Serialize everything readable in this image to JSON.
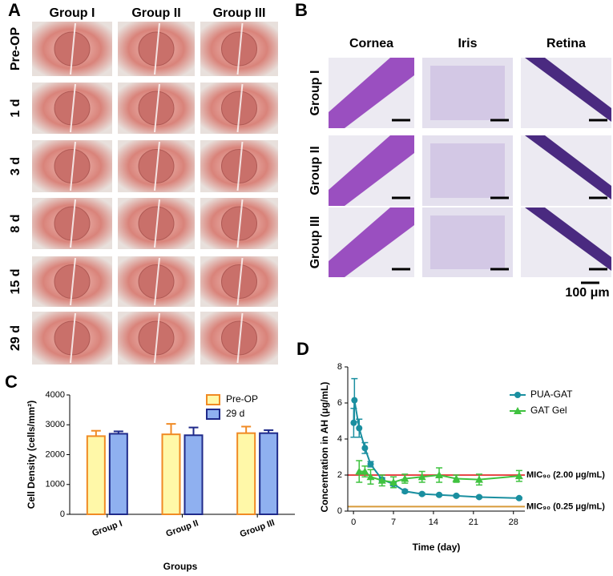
{
  "panel_a": {
    "label": "A",
    "columns": [
      "Group I",
      "Group II",
      "Group III"
    ],
    "rows": [
      "Pre-OP",
      "1 d",
      "3 d",
      "8 d",
      "15 d",
      "29 d"
    ]
  },
  "panel_b": {
    "label": "B",
    "columns": [
      "Cornea",
      "Iris",
      "Retina"
    ],
    "rows": [
      "Group I",
      "Group II",
      "Group III"
    ],
    "scale_bar": "100 μm"
  },
  "chart_data": [
    {
      "type": "bar",
      "label": "C",
      "y_label": "Cell Density (cells/mm²)",
      "x_label": "Groups",
      "categories": [
        "Group I",
        "Group II",
        "Group III"
      ],
      "series": [
        {
          "name": "Pre-OP",
          "color": "#f08a24",
          "fill": "#fff8a8",
          "values": [
            2620,
            2680,
            2720
          ],
          "errors": [
            180,
            350,
            220
          ]
        },
        {
          "name": "29 d",
          "color": "#1f2a8a",
          "fill": "#8fb0f0",
          "values": [
            2700,
            2650,
            2720
          ],
          "errors": [
            80,
            260,
            100
          ]
        }
      ],
      "ylim": [
        0,
        4000
      ],
      "yticks": [
        0,
        1000,
        2000,
        3000,
        4000
      ]
    },
    {
      "type": "line",
      "label": "D",
      "y_label": "Concentration in AH (μg/mL)",
      "x_label": "Time (day)",
      "series": [
        {
          "name": "PUA-GAT",
          "color": "#1a8fa0",
          "marker": "circle",
          "x": [
            0.04,
            0.17,
            1,
            2,
            3,
            5,
            7,
            9,
            12,
            15,
            18,
            22,
            29
          ],
          "values": [
            4.9,
            6.15,
            4.6,
            3.5,
            2.6,
            1.75,
            1.5,
            1.1,
            0.95,
            0.9,
            0.85,
            0.78,
            0.72
          ],
          "errors": [
            0.8,
            1.2,
            0.5,
            0.3,
            0.15,
            0.1,
            0.1,
            0.08,
            0.06,
            0.05,
            0.05,
            0.05,
            0.05
          ]
        },
        {
          "name": "GAT Gel",
          "color": "#3fc23f",
          "marker": "triangle",
          "x": [
            1,
            2,
            3,
            5,
            7,
            9,
            12,
            15,
            18,
            22,
            29
          ],
          "values": [
            2.2,
            2.2,
            1.9,
            1.7,
            1.6,
            1.8,
            1.9,
            2.0,
            1.8,
            1.75,
            1.95
          ],
          "errors": [
            0.6,
            0.3,
            0.4,
            0.3,
            0.3,
            0.25,
            0.3,
            0.4,
            0.2,
            0.3,
            0.3
          ]
        }
      ],
      "reference_lines": [
        {
          "value": 2,
          "label": "MIC₉₀ (2.00 μg/mL)",
          "color": "#e84848"
        },
        {
          "value": 0.25,
          "label": "MIC₉₀ (0.25 μg/mL)",
          "color": "#d89a3a"
        }
      ],
      "xlim": [
        -1,
        30
      ],
      "xticks": [
        0,
        7,
        14,
        21,
        28
      ],
      "ylim": [
        0,
        8
      ],
      "yticks": [
        0,
        2,
        4,
        6,
        8
      ]
    }
  ]
}
